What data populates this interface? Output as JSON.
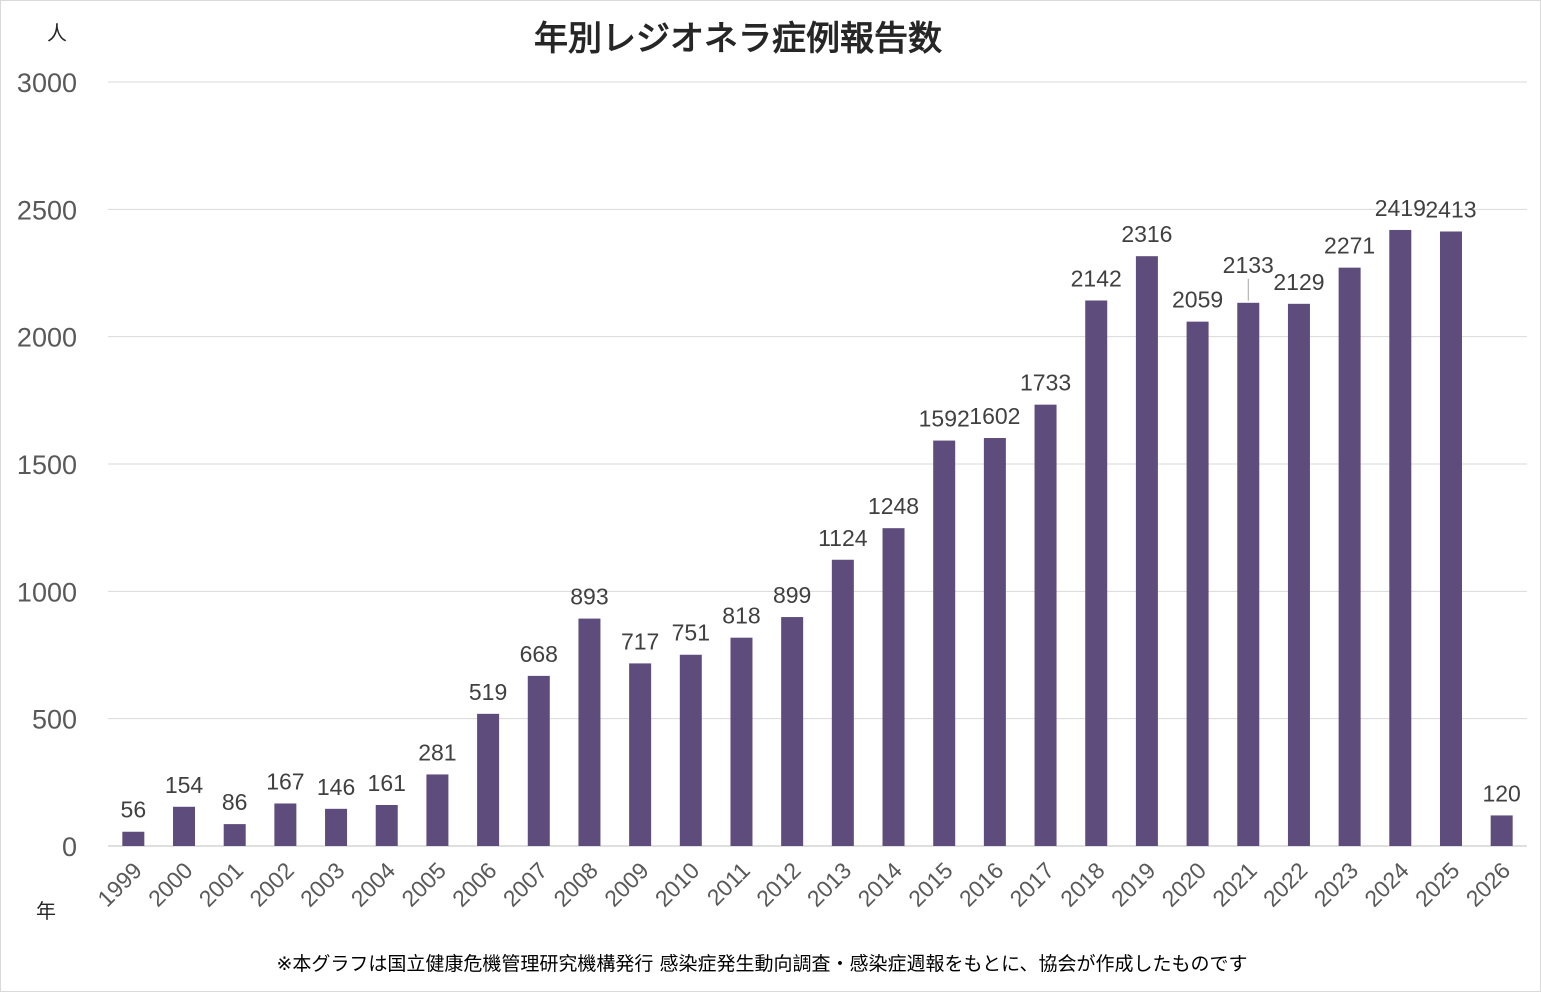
{
  "chart_data": {
    "type": "bar",
    "title": "年別レジオネラ症例報告数",
    "y_unit_label": "人",
    "x_unit_label": "年",
    "ylim": [
      0,
      3000
    ],
    "yticks": [
      0,
      500,
      1000,
      1500,
      2000,
      2500,
      3000
    ],
    "grid": true,
    "legend": "none",
    "categories": [
      "1999",
      "2000",
      "2001",
      "2002",
      "2003",
      "2004",
      "2005",
      "2006",
      "2007",
      "2008",
      "2009",
      "2010",
      "2011",
      "2012",
      "2013",
      "2014",
      "2015",
      "2016",
      "2017",
      "2018",
      "2019",
      "2020",
      "2021",
      "2022",
      "2023",
      "2024",
      "2025",
      "2026"
    ],
    "values": [
      56,
      154,
      86,
      167,
      146,
      161,
      281,
      519,
      668,
      893,
      717,
      751,
      818,
      899,
      1124,
      1248,
      1592,
      1602,
      1733,
      2142,
      2316,
      2059,
      2133,
      2129,
      2271,
      2419,
      2413,
      120
    ],
    "bar_color": "#5e4c7c",
    "note": "※本グラフは国立健康危機管理研究機構発行 感染症発生動向調査・感染症週報をもとに、協会が作成したものです"
  }
}
